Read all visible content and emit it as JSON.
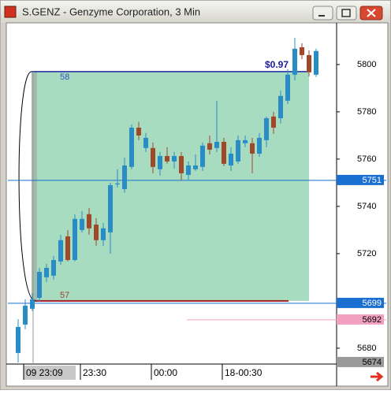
{
  "chart_data": {
    "type": "candlestick",
    "title": "S.GENZ - Genzyme Corporation, 3 Min",
    "categories": [
      null,
      "09 23:09",
      null,
      null,
      null,
      null,
      null,
      null,
      null,
      "23:30",
      null,
      null,
      null,
      null,
      null,
      null,
      null,
      null,
      null,
      "00:00",
      null,
      null,
      null,
      null,
      null,
      null,
      null,
      null,
      null,
      "18-00:30",
      null,
      null,
      null,
      null,
      null,
      null,
      null,
      null,
      null,
      null,
      null,
      null,
      null
    ],
    "open": [
      5678,
      5690,
      5696.7,
      5701.3,
      5710,
      5710.7,
      5716.7,
      5727.3,
      5717.3,
      5730,
      5736.7,
      5732.3,
      5725.7,
      5729,
      5749.3,
      5747.3,
      5756.7,
      5773.3,
      5764.7,
      5764.7,
      5755.7,
      5761.3,
      5759,
      5761.3,
      5753.3,
      5755.7,
      5756.7,
      5766.7,
      5764.7,
      5767.3,
      5757.3,
      5759,
      5766.7,
      5766.7,
      5762.3,
      5768,
      5778,
      5777.3,
      5784.7,
      5795.7,
      5807.3,
      5804,
      5795.7
    ],
    "high": [
      5692.3,
      5700.7,
      5703.3,
      5714,
      5715.7,
      5719,
      5728,
      5730,
      5736.7,
      5738,
      5739.3,
      5735,
      5733,
      5750,
      5755.7,
      5760.7,
      5774.7,
      5775.7,
      5771,
      5767,
      5763,
      5765,
      5763,
      5763,
      5759,
      5762,
      5767,
      5770,
      5784.7,
      5769,
      5765,
      5770,
      5770,
      5769,
      5771,
      5778,
      5780,
      5789,
      5798,
      5811.3,
      5809,
      5806,
      5806.7
    ],
    "low": [
      5674,
      5688,
      5695.7,
      5699.7,
      5708,
      5709,
      5715.3,
      5716.7,
      5716.7,
      5729,
      5728,
      5723.3,
      5723.3,
      5720,
      5748,
      5745.7,
      5755.7,
      5768,
      5763,
      5754,
      5753,
      5758,
      5756,
      5751,
      5751.3,
      5755,
      5755,
      5762,
      5763,
      5757,
      5755,
      5758,
      5765,
      5754,
      5761,
      5765,
      5770.7,
      5775,
      5783.3,
      5793.3,
      5802.3,
      5795,
      5794.7
    ],
    "close": [
      5689,
      5698,
      5700.7,
      5712.3,
      5714,
      5717.3,
      5725.7,
      5717.3,
      5734.7,
      5734.7,
      5730.7,
      5725.7,
      5730.7,
      5749,
      5749.7,
      5757.3,
      5773.3,
      5770,
      5769,
      5756.7,
      5761.3,
      5759,
      5761.3,
      5754,
      5757.3,
      5757.3,
      5765.7,
      5764,
      5767.3,
      5758,
      5762.3,
      5768,
      5768,
      5762.3,
      5769,
      5777.3,
      5773.3,
      5786.7,
      5795.7,
      5806.7,
      5804,
      5796.7,
      5805.7
    ],
    "up_color": "#2a8cc4",
    "down_color": "#a0482a",
    "ylim": [
      5673.3,
      5817.3
    ],
    "yticks": [
      5680,
      5720,
      5740,
      5760,
      5780,
      5800
    ],
    "price_markers": [
      {
        "value": 5751,
        "color": "#1a6fd0",
        "line": true
      },
      {
        "value": 5699,
        "color": "#1a6fd0",
        "line": true
      },
      {
        "value": 5692,
        "color": "#f2a0c0",
        "line": true
      },
      {
        "value": 5674,
        "color": "#9a9a9a",
        "line": false
      }
    ],
    "measure": {
      "low": 5700,
      "high": 5797,
      "change_label": "$0.97",
      "top_label": "58",
      "bottom_label": "57",
      "color": "#a8dcc0"
    }
  }
}
